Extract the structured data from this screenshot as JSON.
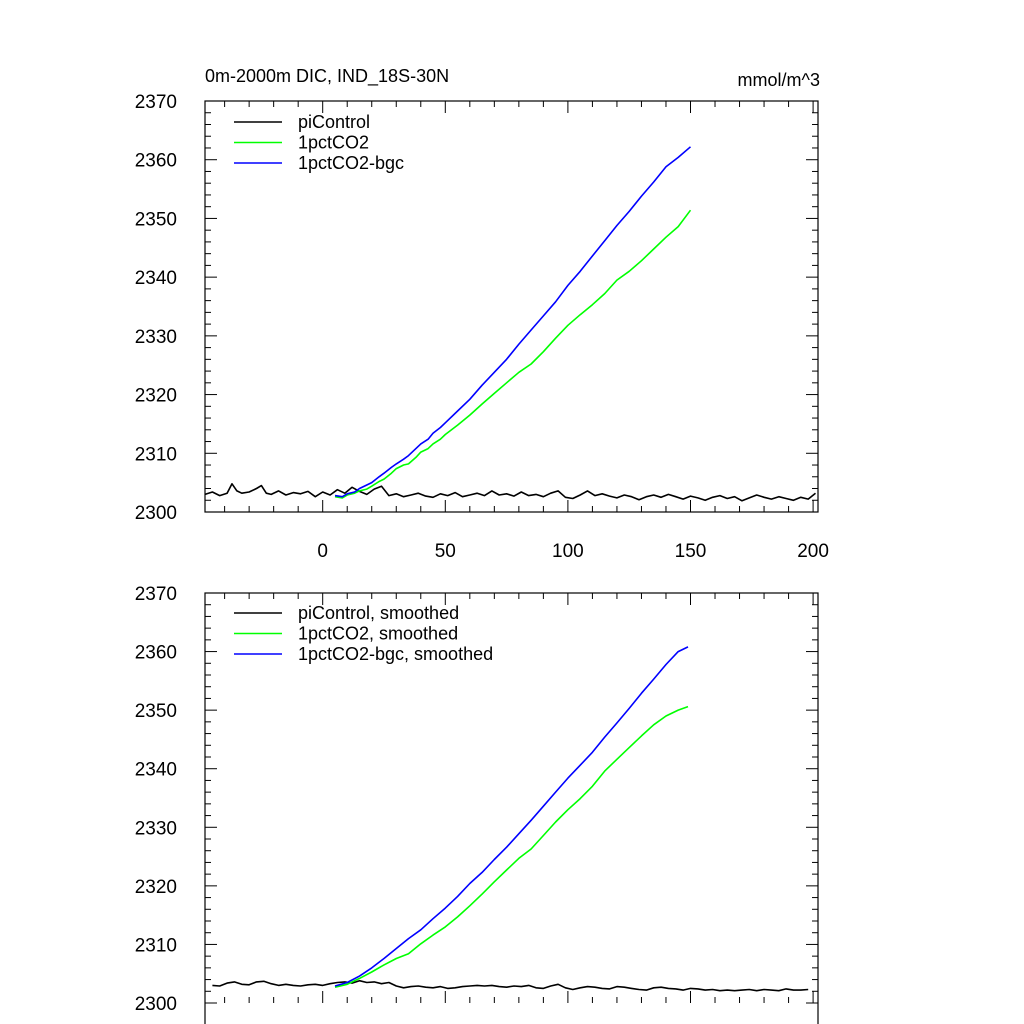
{
  "chart_data": [
    {
      "type": "line",
      "title": "0m-2000m DIC, IND_18S-30N",
      "units": "mmol/m^3",
      "xlim": [
        -48,
        202
      ],
      "ylim": [
        2300,
        2370
      ],
      "x_ticks": [
        0,
        50,
        100,
        150,
        200
      ],
      "x_tick_labels": [
        "0",
        "50",
        "100",
        "150",
        "200"
      ],
      "y_ticks": [
        2300,
        2310,
        2320,
        2330,
        2340,
        2350,
        2360,
        2370
      ],
      "y_tick_labels": [
        "2300",
        "2310",
        "2320",
        "2330",
        "2340",
        "2350",
        "2360",
        "2370"
      ],
      "legend_position": "top-left",
      "series": [
        {
          "name": "piControl",
          "color": "#000000",
          "x": [
            -48,
            -45,
            -42,
            -39,
            -37,
            -35,
            -33,
            -30,
            -27,
            -25,
            -23,
            -21,
            -18,
            -15,
            -12,
            -9,
            -6,
            -3,
            0,
            3,
            6,
            9,
            12,
            15,
            18,
            21,
            24,
            27,
            30,
            33,
            36,
            39,
            42,
            45,
            48,
            51,
            54,
            57,
            60,
            63,
            66,
            69,
            72,
            75,
            78,
            81,
            84,
            87,
            90,
            93,
            96,
            99,
            102,
            105,
            108,
            111,
            114,
            117,
            120,
            123,
            126,
            129,
            132,
            135,
            138,
            141,
            144,
            147,
            150,
            153,
            156,
            159,
            162,
            165,
            168,
            171,
            174,
            177,
            180,
            183,
            186,
            189,
            192,
            195,
            198,
            201
          ],
          "y": [
            2303.0,
            2303.4,
            2302.8,
            2303.2,
            2304.8,
            2303.6,
            2303.2,
            2303.4,
            2304.0,
            2304.5,
            2303.2,
            2303.0,
            2303.6,
            2302.9,
            2303.3,
            2303.1,
            2303.5,
            2302.6,
            2303.4,
            2302.9,
            2303.8,
            2303.2,
            2304.2,
            2303.5,
            2303.0,
            2303.9,
            2304.4,
            2302.8,
            2303.1,
            2302.6,
            2302.9,
            2303.2,
            2302.7,
            2302.5,
            2303.1,
            2302.8,
            2303.3,
            2302.6,
            2302.9,
            2303.2,
            2302.8,
            2303.6,
            2302.9,
            2303.1,
            2302.7,
            2303.4,
            2302.8,
            2303.0,
            2302.6,
            2303.2,
            2303.6,
            2302.5,
            2302.3,
            2302.9,
            2303.6,
            2302.8,
            2303.1,
            2302.7,
            2302.4,
            2302.9,
            2302.6,
            2302.1,
            2302.6,
            2302.9,
            2302.5,
            2303.0,
            2302.6,
            2302.2,
            2302.7,
            2302.4,
            2302.0,
            2302.5,
            2302.8,
            2302.3,
            2302.6,
            2301.9,
            2302.4,
            2302.9,
            2302.5,
            2302.2,
            2302.6,
            2302.3,
            2302.0,
            2302.5,
            2302.2,
            2303.2
          ]
        },
        {
          "name": "1pctCO2",
          "color": "#00ff00",
          "x": [
            5,
            8,
            10,
            13,
            15,
            18,
            20,
            23,
            25,
            28,
            30,
            33,
            35,
            38,
            40,
            43,
            45,
            48,
            50,
            55,
            60,
            65,
            70,
            75,
            80,
            85,
            90,
            95,
            100,
            105,
            110,
            115,
            120,
            125,
            130,
            135,
            140,
            145,
            150
          ],
          "y": [
            2302.6,
            2302.4,
            2302.9,
            2303.2,
            2303.6,
            2303.9,
            2304.4,
            2305.2,
            2305.6,
            2306.6,
            2307.4,
            2308.0,
            2308.2,
            2309.3,
            2310.2,
            2310.8,
            2311.6,
            2312.4,
            2313.2,
            2314.8,
            2316.5,
            2318.4,
            2320.2,
            2322.0,
            2323.8,
            2325.2,
            2327.3,
            2329.6,
            2331.8,
            2333.6,
            2335.3,
            2337.2,
            2339.5,
            2341.0,
            2342.8,
            2344.8,
            2346.8,
            2348.6,
            2351.4
          ]
        },
        {
          "name": "1pctCO2-bgc",
          "color": "#0000ff",
          "x": [
            5,
            8,
            10,
            13,
            15,
            18,
            20,
            23,
            25,
            28,
            30,
            33,
            35,
            38,
            40,
            43,
            45,
            48,
            50,
            55,
            60,
            65,
            70,
            75,
            80,
            85,
            90,
            95,
            100,
            105,
            110,
            115,
            120,
            125,
            130,
            135,
            140,
            145,
            150
          ],
          "y": [
            2302.8,
            2302.6,
            2303.1,
            2303.4,
            2304.0,
            2304.6,
            2305.0,
            2306.0,
            2306.6,
            2307.6,
            2308.2,
            2309.0,
            2309.6,
            2310.8,
            2311.6,
            2312.4,
            2313.4,
            2314.4,
            2315.2,
            2317.2,
            2319.2,
            2321.6,
            2323.8,
            2326.0,
            2328.6,
            2331.0,
            2333.4,
            2335.8,
            2338.6,
            2341.0,
            2343.6,
            2346.2,
            2348.8,
            2351.2,
            2353.8,
            2356.2,
            2358.8,
            2360.4,
            2362.2
          ]
        }
      ]
    },
    {
      "type": "line",
      "xlim": [
        -48,
        202
      ],
      "ylim": [
        2300,
        2370
      ],
      "x_ticks": [
        0,
        50,
        100,
        150,
        200
      ],
      "y_ticks": [
        2300,
        2310,
        2320,
        2330,
        2340,
        2350,
        2360,
        2370
      ],
      "y_tick_labels": [
        "2300",
        "2310",
        "2320",
        "2330",
        "2340",
        "2350",
        "2360",
        "2370"
      ],
      "legend_position": "top-left",
      "series": [
        {
          "name": "piControl, smoothed",
          "color": "#000000",
          "x": [
            -45,
            -42,
            -39,
            -36,
            -33,
            -30,
            -27,
            -24,
            -21,
            -18,
            -15,
            -12,
            -9,
            -6,
            -3,
            0,
            3,
            6,
            9,
            12,
            15,
            18,
            21,
            24,
            27,
            30,
            33,
            36,
            39,
            42,
            45,
            48,
            51,
            54,
            57,
            60,
            63,
            66,
            69,
            72,
            75,
            78,
            81,
            84,
            87,
            90,
            93,
            96,
            99,
            102,
            105,
            108,
            111,
            114,
            117,
            120,
            123,
            126,
            129,
            132,
            135,
            138,
            141,
            144,
            147,
            150,
            153,
            156,
            159,
            162,
            165,
            168,
            171,
            174,
            177,
            180,
            183,
            186,
            189,
            192,
            195,
            198
          ],
          "y": [
            2303.0,
            2302.9,
            2303.4,
            2303.6,
            2303.2,
            2303.1,
            2303.6,
            2303.7,
            2303.3,
            2303.0,
            2303.2,
            2303.0,
            2302.9,
            2303.1,
            2303.2,
            2303.0,
            2303.3,
            2303.5,
            2303.6,
            2303.4,
            2303.8,
            2303.5,
            2303.6,
            2303.3,
            2303.5,
            2302.9,
            2302.6,
            2302.8,
            2302.9,
            2302.7,
            2302.6,
            2302.8,
            2302.5,
            2302.6,
            2302.8,
            2302.9,
            2303.0,
            2302.9,
            2303.0,
            2302.8,
            2302.7,
            2302.9,
            2302.8,
            2303.0,
            2302.6,
            2302.5,
            2302.9,
            2303.2,
            2302.6,
            2302.3,
            2302.6,
            2302.8,
            2302.7,
            2302.5,
            2302.4,
            2302.8,
            2302.7,
            2302.5,
            2302.3,
            2302.2,
            2302.6,
            2302.7,
            2302.5,
            2302.4,
            2302.2,
            2302.5,
            2302.4,
            2302.2,
            2302.3,
            2302.1,
            2302.2,
            2302.1,
            2302.2,
            2302.3,
            2302.1,
            2302.3,
            2302.2,
            2302.1,
            2302.4,
            2302.2,
            2302.2,
            2302.3
          ]
        },
        {
          "name": "1pctCO2, smoothed",
          "color": "#00ff00",
          "x": [
            5,
            10,
            15,
            20,
            25,
            30,
            35,
            40,
            45,
            50,
            55,
            60,
            65,
            70,
            75,
            80,
            85,
            90,
            95,
            100,
            105,
            110,
            115,
            120,
            125,
            130,
            135,
            140,
            145,
            149
          ],
          "y": [
            2302.7,
            2303.2,
            2304.2,
            2305.3,
            2306.5,
            2307.6,
            2308.4,
            2310.1,
            2311.6,
            2313.0,
            2314.7,
            2316.6,
            2318.6,
            2320.7,
            2322.7,
            2324.7,
            2326.3,
            2328.6,
            2330.9,
            2333.0,
            2334.9,
            2337.0,
            2339.6,
            2341.6,
            2343.6,
            2345.6,
            2347.5,
            2349.0,
            2350.0,
            2350.6
          ]
        },
        {
          "name": "1pctCO2-bgc, smoothed",
          "color": "#0000ff",
          "x": [
            5,
            10,
            15,
            20,
            25,
            30,
            35,
            40,
            45,
            50,
            55,
            60,
            65,
            70,
            75,
            80,
            85,
            90,
            95,
            100,
            105,
            110,
            115,
            120,
            125,
            130,
            135,
            140,
            145,
            149
          ],
          "y": [
            2302.9,
            2303.5,
            2304.6,
            2306.0,
            2307.6,
            2309.3,
            2311.0,
            2312.5,
            2314.4,
            2316.2,
            2318.2,
            2320.4,
            2322.3,
            2324.5,
            2326.6,
            2328.9,
            2331.2,
            2333.6,
            2336.0,
            2338.4,
            2340.6,
            2342.8,
            2345.4,
            2347.8,
            2350.3,
            2352.9,
            2355.3,
            2357.8,
            2360.0,
            2360.8
          ]
        }
      ]
    }
  ]
}
